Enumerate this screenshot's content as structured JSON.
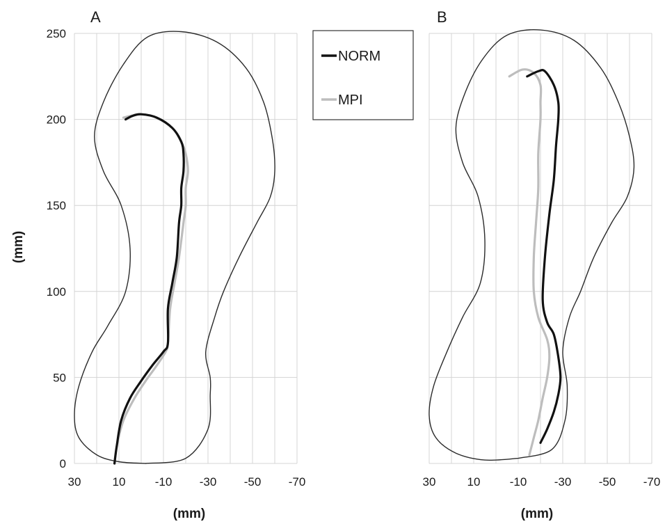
{
  "colors": {
    "NORM": "#111111",
    "MPI": "#bdbdbd",
    "outline": "#2a2a2a",
    "grid": "#d4d4d4"
  },
  "legend": {
    "placement": "between-panels-top",
    "items": [
      {
        "label": "NORM",
        "color": "#111111"
      },
      {
        "label": "MPI",
        "color": "#bdbdbd"
      }
    ]
  },
  "chart_data": [
    {
      "type": "line",
      "panel_label": "A",
      "xlabel": "(mm)",
      "ylabel": "(mm)",
      "xlim": [
        30,
        -70
      ],
      "ylim": [
        0,
        250
      ],
      "x_ticks": [
        30,
        10,
        -10,
        -30,
        -50,
        -70
      ],
      "x_tick_labels": [
        "30",
        "10",
        "-10",
        "-30",
        "-50",
        "-70"
      ],
      "y_ticks": [
        0,
        50,
        100,
        150,
        200,
        250
      ],
      "y_tick_labels": [
        "0",
        "50",
        "100",
        "150",
        "200",
        "250"
      ],
      "grid": true,
      "foot_outline": [
        [
          -2,
          0
        ],
        [
          -20,
          3
        ],
        [
          -30,
          20
        ],
        [
          -31,
          40
        ],
        [
          -31,
          50
        ],
        [
          -29,
          65
        ],
        [
          -33,
          85
        ],
        [
          -37,
          100
        ],
        [
          -44,
          120
        ],
        [
          -52,
          140
        ],
        [
          -58,
          155
        ],
        [
          -60,
          170
        ],
        [
          -59,
          188
        ],
        [
          -55,
          210
        ],
        [
          -47,
          230
        ],
        [
          -34,
          245
        ],
        [
          -18,
          251
        ],
        [
          -3,
          248
        ],
        [
          8,
          232
        ],
        [
          17,
          210
        ],
        [
          21,
          190
        ],
        [
          17,
          170
        ],
        [
          9,
          150
        ],
        [
          5,
          125
        ],
        [
          7,
          100
        ],
        [
          15,
          80
        ],
        [
          22,
          65
        ],
        [
          28,
          45
        ],
        [
          30,
          28
        ],
        [
          28,
          15
        ],
        [
          20,
          5
        ],
        [
          10,
          1
        ],
        [
          -2,
          0
        ]
      ],
      "series": [
        {
          "name": "NORM",
          "color": "#111111",
          "x": [
            12,
            11,
            9,
            5,
            0,
            -5,
            -10,
            -12,
            -12,
            -14,
            -16,
            -17,
            -18,
            -18,
            -19,
            -19,
            -18,
            -14,
            -7,
            0,
            4,
            7
          ],
          "y": [
            0,
            10,
            25,
            38,
            48,
            57,
            65,
            70,
            90,
            105,
            120,
            140,
            150,
            160,
            170,
            180,
            187,
            195,
            201,
            203,
            202,
            200
          ]
        },
        {
          "name": "MPI",
          "color": "#bdbdbd",
          "x": [
            12,
            11,
            8,
            3,
            -2,
            -7,
            -11,
            -12,
            -13,
            -15,
            -17,
            -19,
            -20,
            -20,
            -21,
            -20,
            -18,
            -14,
            -7,
            0,
            5,
            8
          ],
          "y": [
            0,
            10,
            25,
            38,
            48,
            57,
            65,
            70,
            90,
            105,
            120,
            140,
            150,
            160,
            170,
            180,
            187,
            195,
            201,
            203,
            202,
            201
          ]
        }
      ]
    },
    {
      "type": "line",
      "panel_label": "B",
      "xlabel": "(mm)",
      "ylabel": "",
      "xlim": [
        30,
        -70
      ],
      "ylim": [
        0,
        250
      ],
      "x_ticks": [
        30,
        10,
        -10,
        -30,
        -50,
        -70
      ],
      "x_tick_labels": [
        "30",
        "10",
        "-10",
        "-30",
        "-50",
        "-70"
      ],
      "y_ticks": [
        0,
        50,
        100,
        150,
        200,
        250
      ],
      "y_tick_labels": [],
      "grid": true,
      "foot_outline": [
        [
          -10,
          3
        ],
        [
          -25,
          8
        ],
        [
          -31,
          25
        ],
        [
          -32,
          45
        ],
        [
          -30,
          65
        ],
        [
          -33,
          85
        ],
        [
          -38,
          100
        ],
        [
          -44,
          120
        ],
        [
          -52,
          140
        ],
        [
          -59,
          155
        ],
        [
          -62,
          172
        ],
        [
          -60,
          190
        ],
        [
          -55,
          210
        ],
        [
          -47,
          230
        ],
        [
          -35,
          246
        ],
        [
          -20,
          252
        ],
        [
          -5,
          249
        ],
        [
          6,
          235
        ],
        [
          14,
          215
        ],
        [
          18,
          195
        ],
        [
          15,
          175
        ],
        [
          8,
          155
        ],
        [
          5,
          130
        ],
        [
          7,
          105
        ],
        [
          15,
          85
        ],
        [
          22,
          65
        ],
        [
          28,
          45
        ],
        [
          30,
          28
        ],
        [
          27,
          15
        ],
        [
          18,
          6
        ],
        [
          5,
          2
        ],
        [
          -10,
          3
        ]
      ],
      "series": [
        {
          "name": "NORM",
          "color": "#111111",
          "x": [
            -20,
            -23,
            -26,
            -28,
            -29,
            -28,
            -26,
            -23,
            -21,
            -22,
            -24,
            -26,
            -27,
            -28,
            -28,
            -26,
            -22,
            -19,
            -14
          ],
          "y": [
            12,
            20,
            30,
            40,
            50,
            62,
            75,
            82,
            95,
            120,
            145,
            165,
            185,
            200,
            210,
            220,
            228,
            228,
            225
          ]
        },
        {
          "name": "MPI",
          "color": "#bdbdbd",
          "x": [
            -15,
            -17,
            -19,
            -21,
            -23,
            -24,
            -23,
            -19,
            -17,
            -17,
            -18,
            -19,
            -19,
            -20,
            -20,
            -20,
            -17,
            -12,
            -6
          ],
          "y": [
            5,
            15,
            25,
            38,
            50,
            62,
            72,
            85,
            100,
            120,
            140,
            160,
            180,
            200,
            210,
            220,
            227,
            229,
            225
          ]
        }
      ]
    }
  ]
}
